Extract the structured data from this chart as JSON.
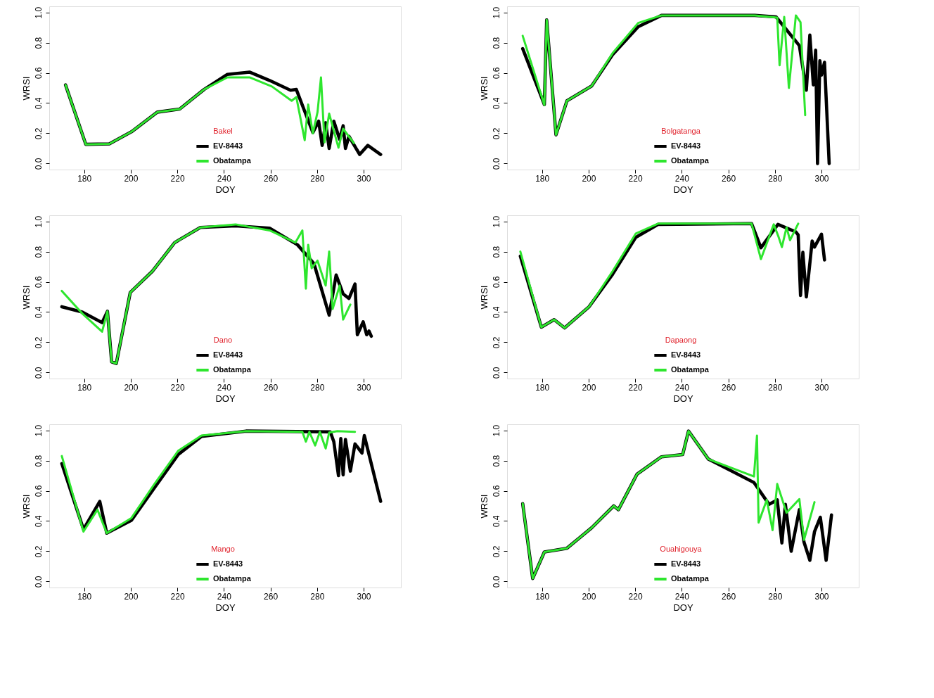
{
  "chart_data": [
    {
      "type": "line",
      "legend_title": "Bakel",
      "xlabel": "DOY",
      "ylabel": "WRSI",
      "xlim": [
        165,
        316
      ],
      "ylim": [
        -0.04,
        1.04
      ],
      "xticks": [
        180,
        200,
        220,
        240,
        260,
        280,
        300
      ],
      "yticks": [
        {
          "value": 0,
          "label": "0.0"
        },
        {
          "value": 0.2,
          "label": "0.2"
        },
        {
          "value": 0.4,
          "label": "0.4"
        },
        {
          "value": 0.6,
          "label": "0.6"
        },
        {
          "value": 0.8,
          "label": "0.8"
        },
        {
          "value": 1,
          "label": "1.0"
        }
      ],
      "legend": "bottom",
      "line_style": "solid",
      "marker": "none",
      "series": [
        {
          "name": "EV-8443",
          "color": "#000000",
          "x": [
            172,
            180.7,
            190.8,
            200.3,
            211.4,
            221,
            231.5,
            241.5,
            251,
            259.6,
            268.6,
            271.1,
            274.7,
            278.2,
            280.7,
            282.2,
            283.7,
            285.2,
            287.2,
            289.7,
            291.2,
            292.2,
            293.7,
            298.3,
            301.8,
            307.3
          ],
          "values": [
            0.52,
            0.127,
            0.13,
            0.21,
            0.34,
            0.36,
            0.49,
            0.59,
            0.605,
            0.55,
            0.485,
            0.49,
            0.345,
            0.205,
            0.28,
            0.12,
            0.27,
            0.1,
            0.28,
            0.16,
            0.25,
            0.1,
            0.18,
            0.06,
            0.12,
            0.06
          ]
        },
        {
          "name": "Obatampa",
          "color": "#2ee62e",
          "x": [
            172,
            180.7,
            190.8,
            200.3,
            211.4,
            221,
            231.5,
            241.5,
            251,
            260.6,
            269.1,
            271.1,
            274.7,
            276.2,
            278.2,
            280.2,
            281.7,
            283.2,
            285.2,
            289.2,
            291.2,
            295.8
          ],
          "values": [
            0.52,
            0.127,
            0.13,
            0.21,
            0.34,
            0.36,
            0.49,
            0.57,
            0.57,
            0.51,
            0.415,
            0.44,
            0.155,
            0.39,
            0.2,
            0.34,
            0.57,
            0.14,
            0.33,
            0.105,
            0.23,
            0.135
          ]
        }
      ]
    },
    {
      "type": "line",
      "legend_title": "Bolgatanga",
      "xlabel": "DOY",
      "ylabel": "WRSI",
      "xlim": [
        165,
        316
      ],
      "ylim": [
        -0.04,
        1.04
      ],
      "xticks": [
        180,
        200,
        220,
        240,
        260,
        280,
        300
      ],
      "yticks": [
        {
          "value": 0,
          "label": "0.0"
        },
        {
          "value": 0.2,
          "label": "0.2"
        },
        {
          "value": 0.4,
          "label": "0.4"
        },
        {
          "value": 0.6,
          "label": "0.6"
        },
        {
          "value": 0.8,
          "label": "0.8"
        },
        {
          "value": 1,
          "label": "1.0"
        }
      ],
      "legend": "bottom",
      "line_style": "solid",
      "marker": "none",
      "series": [
        {
          "name": "EV-8443",
          "color": "#000000",
          "x": [
            171.7,
            181,
            182,
            186,
            190.7,
            201.3,
            210.3,
            221.3,
            231.3,
            271.4,
            280.5,
            290.5,
            293.5,
            295,
            296.5,
            297.5,
            298.3,
            299.3,
            300,
            301.3,
            303.3
          ],
          "values": [
            0.76,
            0.39,
            0.95,
            0.19,
            0.415,
            0.513,
            0.72,
            0.905,
            0.98,
            0.98,
            0.97,
            0.78,
            0.485,
            0.85,
            0.52,
            0.75,
            0.0,
            0.68,
            0.585,
            0.67,
            0.0
          ]
        },
        {
          "name": "Obatampa",
          "color": "#2ee62e",
          "x": [
            171.7,
            181,
            182,
            186,
            190.7,
            201.3,
            210.3,
            221.3,
            231.3,
            271.4,
            281,
            282,
            284,
            286,
            289,
            291,
            293
          ],
          "values": [
            0.845,
            0.387,
            0.95,
            0.19,
            0.415,
            0.513,
            0.73,
            0.93,
            0.98,
            0.98,
            0.966,
            0.65,
            0.97,
            0.5,
            0.98,
            0.935,
            0.32
          ]
        }
      ]
    },
    {
      "type": "line",
      "legend_title": "Dano",
      "xlabel": "DOY",
      "ylabel": "WRSI",
      "xlim": [
        165,
        316
      ],
      "ylim": [
        -0.04,
        1.04
      ],
      "xticks": [
        180,
        200,
        220,
        240,
        260,
        280,
        300
      ],
      "yticks": [
        {
          "value": 0,
          "label": "0.0"
        },
        {
          "value": 0.2,
          "label": "0.2"
        },
        {
          "value": 0.4,
          "label": "0.4"
        },
        {
          "value": 0.6,
          "label": "0.6"
        },
        {
          "value": 0.8,
          "label": "0.8"
        },
        {
          "value": 1,
          "label": "1.0"
        }
      ],
      "legend": "bottom",
      "line_style": "solid",
      "marker": "none",
      "series": [
        {
          "name": "EV-8443",
          "color": "#000000",
          "x": [
            170.4,
            179.2,
            187.7,
            190,
            191.8,
            193.8,
            199.8,
            209.3,
            218.9,
            229.9,
            245,
            259.6,
            271.6,
            278.7,
            285.2,
            288.2,
            291.2,
            293.7,
            296.3,
            297.3,
            299.8,
            301.3,
            302.3,
            303.3
          ],
          "values": [
            0.435,
            0.4,
            0.33,
            0.405,
            0.07,
            0.06,
            0.53,
            0.67,
            0.86,
            0.96,
            0.97,
            0.955,
            0.845,
            0.72,
            0.38,
            0.645,
            0.52,
            0.49,
            0.585,
            0.25,
            0.335,
            0.25,
            0.275,
            0.24
          ]
        },
        {
          "name": "Obatampa",
          "color": "#2ee62e",
          "x": [
            170.4,
            179.2,
            187.7,
            190,
            191.8,
            193.8,
            199.8,
            209.3,
            218.9,
            229.9,
            245,
            259.6,
            270.7,
            273.7,
            275.2,
            276.2,
            277.7,
            280.2,
            283.7,
            285.2,
            286.7,
            289.7,
            291.2,
            294.3
          ],
          "values": [
            0.54,
            0.39,
            0.27,
            0.405,
            0.07,
            0.06,
            0.53,
            0.67,
            0.86,
            0.96,
            0.98,
            0.94,
            0.86,
            0.94,
            0.555,
            0.845,
            0.69,
            0.74,
            0.575,
            0.8,
            0.42,
            0.575,
            0.35,
            0.45
          ]
        }
      ]
    },
    {
      "type": "line",
      "legend_title": "Dapaong",
      "xlabel": "DOY",
      "ylabel": "WRSI",
      "xlim": [
        165,
        316
      ],
      "ylim": [
        -0.04,
        1.04
      ],
      "xticks": [
        180,
        200,
        220,
        240,
        260,
        280,
        300
      ],
      "yticks": [
        {
          "value": 0,
          "label": "0.0"
        },
        {
          "value": 0.2,
          "label": "0.2"
        },
        {
          "value": 0.4,
          "label": "0.4"
        },
        {
          "value": 0.6,
          "label": "0.6"
        },
        {
          "value": 0.8,
          "label": "0.8"
        },
        {
          "value": 1,
          "label": "1.0"
        }
      ],
      "legend": "bottom",
      "line_style": "solid",
      "marker": "none",
      "series": [
        {
          "name": "EV-8443",
          "color": "#000000",
          "x": [
            170.7,
            179.7,
            185.2,
            189.7,
            200.2,
            210.3,
            220.3,
            229.8,
            270,
            274,
            281.3,
            289,
            290,
            291,
            292,
            293.5,
            296,
            297,
            300,
            301.3
          ],
          "values": [
            0.77,
            0.3,
            0.35,
            0.295,
            0.435,
            0.65,
            0.895,
            0.98,
            0.985,
            0.825,
            0.98,
            0.93,
            0.91,
            0.51,
            0.795,
            0.5,
            0.87,
            0.83,
            0.915,
            0.745
          ]
        },
        {
          "name": "Obatampa",
          "color": "#2ee62e",
          "x": [
            170.7,
            179.7,
            185.2,
            189.7,
            200.2,
            210.3,
            220.3,
            229.8,
            270,
            274,
            279.5,
            281.5,
            283,
            285,
            286.5,
            290
          ],
          "values": [
            0.8,
            0.3,
            0.35,
            0.295,
            0.435,
            0.67,
            0.92,
            0.985,
            0.985,
            0.75,
            0.98,
            0.9,
            0.83,
            0.96,
            0.875,
            0.985
          ]
        }
      ]
    },
    {
      "type": "line",
      "legend_title": "Mango",
      "xlabel": "DOY",
      "ylabel": "WRSI",
      "xlim": [
        165,
        316
      ],
      "ylim": [
        -0.04,
        1.04
      ],
      "xticks": [
        180,
        200,
        220,
        240,
        260,
        280,
        300
      ],
      "yticks": [
        {
          "value": 0,
          "label": "0.0"
        },
        {
          "value": 0.2,
          "label": "0.2"
        },
        {
          "value": 0.4,
          "label": "0.4"
        },
        {
          "value": 0.6,
          "label": "0.6"
        },
        {
          "value": 0.8,
          "label": "0.8"
        },
        {
          "value": 1,
          "label": "1.0"
        }
      ],
      "legend": "bottom",
      "line_style": "solid",
      "marker": "none",
      "series": [
        {
          "name": "EV-8443",
          "color": "#000000",
          "x": [
            170.4,
            179.7,
            186.7,
            189.7,
            200.3,
            210.4,
            220.4,
            230.4,
            249.5,
            285.7,
            287.2,
            289.2,
            290.2,
            291.2,
            292.2,
            294.3,
            296.3,
            299.3,
            300.3,
            307.3
          ],
          "values": [
            0.78,
            0.345,
            0.53,
            0.32,
            0.405,
            0.625,
            0.84,
            0.96,
            0.995,
            0.99,
            0.925,
            0.7,
            0.945,
            0.705,
            0.94,
            0.73,
            0.91,
            0.85,
            0.965,
            0.53
          ]
        },
        {
          "name": "Obatampa",
          "color": "#2ee62e",
          "x": [
            170.4,
            179.7,
            185.7,
            189.7,
            200.3,
            210.4,
            220.4,
            230.4,
            249.5,
            273.7,
            275.2,
            276.7,
            279.2,
            281.2,
            283.7,
            285.2,
            288.7,
            296.3
          ],
          "values": [
            0.83,
            0.33,
            0.475,
            0.32,
            0.42,
            0.65,
            0.865,
            0.965,
            0.995,
            0.99,
            0.925,
            0.99,
            0.9,
            0.99,
            0.88,
            0.985,
            0.995,
            0.99
          ]
        }
      ]
    },
    {
      "type": "line",
      "legend_title": "Ouahigouya",
      "xlabel": "DOY",
      "ylabel": "WRSI",
      "xlim": [
        165,
        316
      ],
      "ylim": [
        -0.04,
        1.04
      ],
      "xticks": [
        180,
        200,
        220,
        240,
        260,
        280,
        300
      ],
      "yticks": [
        {
          "value": 0,
          "label": "0.0"
        },
        {
          "value": 0.2,
          "label": "0.2"
        },
        {
          "value": 0.4,
          "label": "0.4"
        },
        {
          "value": 0.6,
          "label": "0.6"
        },
        {
          "value": 0.8,
          "label": "0.8"
        },
        {
          "value": 1,
          "label": "1.0"
        }
      ],
      "legend": "bottom",
      "line_style": "solid",
      "marker": "none",
      "series": [
        {
          "name": "EV-8443",
          "color": "#000000",
          "x": [
            171.7,
            176,
            181,
            190.7,
            201.3,
            210.8,
            212.8,
            220.8,
            231.3,
            240.4,
            242.9,
            251.4,
            271,
            277.5,
            281,
            283,
            284.5,
            287,
            290.5,
            292.5,
            295,
            297,
            299.5,
            302,
            304.3
          ],
          "values": [
            0.515,
            0.02,
            0.195,
            0.22,
            0.355,
            0.5,
            0.475,
            0.71,
            0.825,
            0.84,
            0.995,
            0.81,
            0.655,
            0.51,
            0.54,
            0.255,
            0.51,
            0.2,
            0.475,
            0.26,
            0.14,
            0.33,
            0.425,
            0.14,
            0.44
          ]
        },
        {
          "name": "Obatampa",
          "color": "#2ee62e",
          "x": [
            171.7,
            176,
            181,
            190.7,
            201.3,
            210.8,
            212.8,
            220.8,
            231.3,
            240.4,
            242.9,
            251.4,
            271,
            272.3,
            273,
            276.5,
            279,
            281,
            285,
            290.5,
            292.5,
            297
          ],
          "values": [
            0.515,
            0.02,
            0.195,
            0.22,
            0.355,
            0.5,
            0.475,
            0.71,
            0.825,
            0.84,
            0.995,
            0.81,
            0.695,
            0.965,
            0.39,
            0.54,
            0.34,
            0.645,
            0.455,
            0.545,
            0.275,
            0.525
          ]
        }
      ]
    }
  ]
}
